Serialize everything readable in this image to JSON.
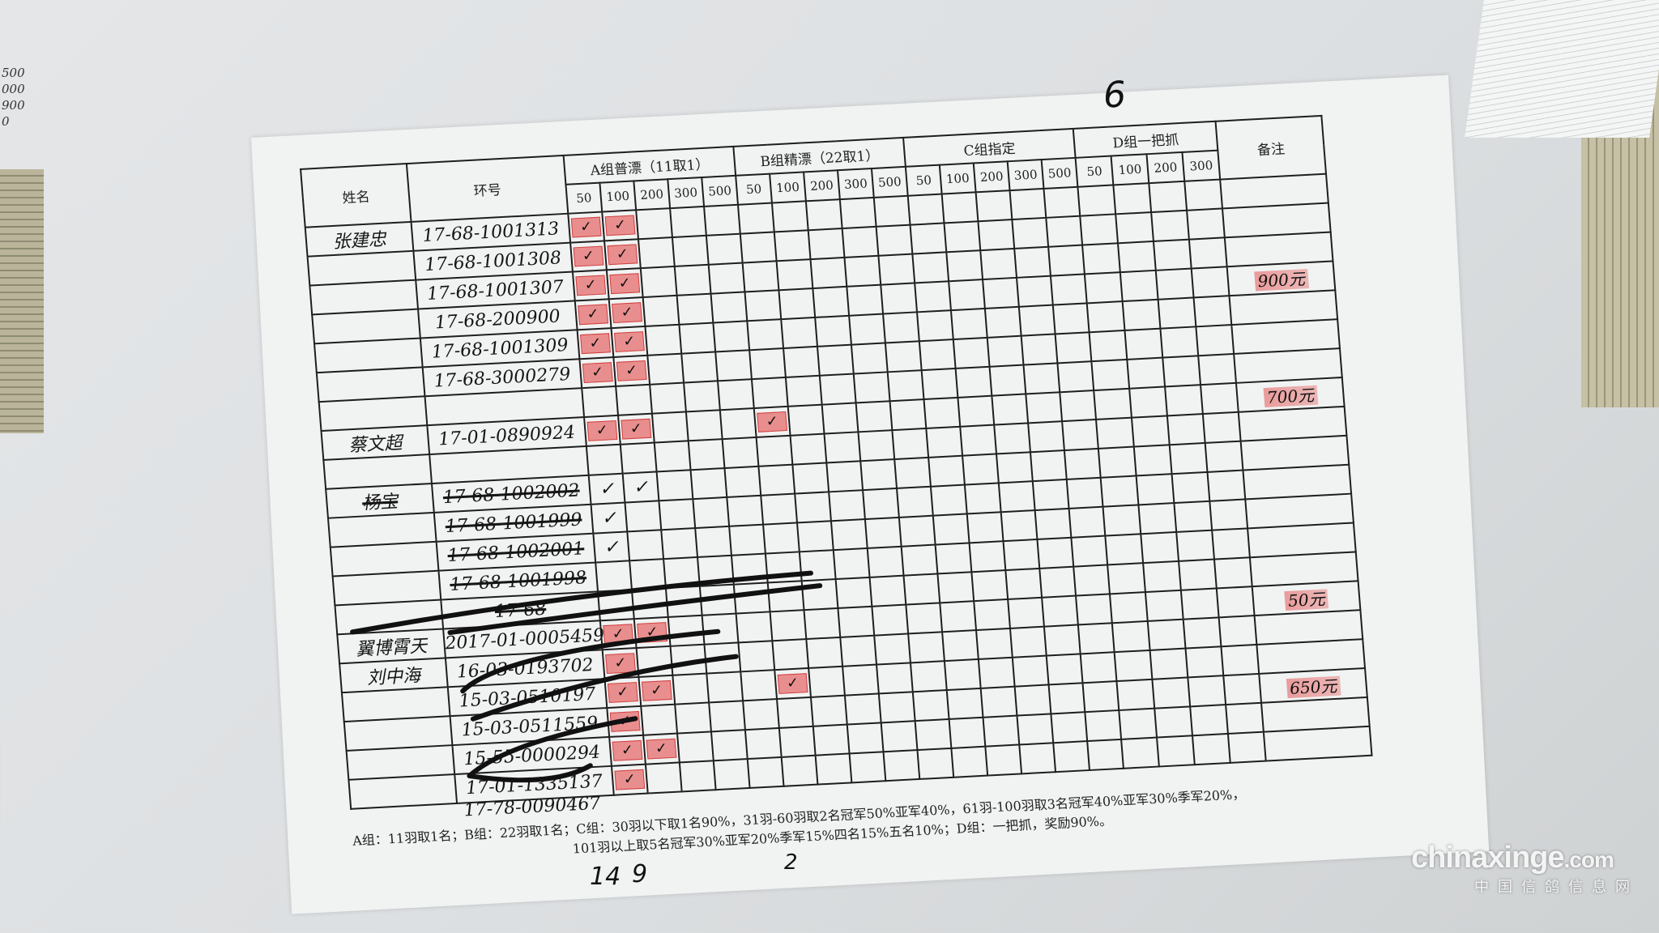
{
  "page_number": "6",
  "edge_notes": [
    "500",
    "000",
    "900",
    "0"
  ],
  "header": {
    "name": "姓名",
    "ring": "环号",
    "groups": [
      {
        "label": "A组普漂（11取1）",
        "cols": [
          "50",
          "100",
          "200",
          "300",
          "500"
        ]
      },
      {
        "label": "B组精漂（22取1）",
        "cols": [
          "50",
          "100",
          "200",
          "300",
          "500"
        ]
      },
      {
        "label": "C组指定",
        "cols": [
          "50",
          "100",
          "200",
          "300",
          "500"
        ]
      },
      {
        "label": "D组一把抓",
        "cols": [
          "50",
          "100",
          "200",
          "300"
        ]
      }
    ],
    "remarks": "备注"
  },
  "rows": [
    {
      "name": "张建忠",
      "ring": "17-68-1001313",
      "stamps": [
        0,
        1
      ],
      "note": ""
    },
    {
      "name": "",
      "ring": "17-68-1001308",
      "stamps": [
        0,
        1
      ],
      "note": ""
    },
    {
      "name": "",
      "ring": "17-68-1001307",
      "stamps": [
        0,
        1
      ],
      "note": ""
    },
    {
      "name": "",
      "ring": "17-68-200900",
      "stamps": [
        0,
        1
      ],
      "note": "900元"
    },
    {
      "name": "",
      "ring": "17-68-1001309",
      "stamps": [
        0,
        1
      ],
      "note": ""
    },
    {
      "name": "",
      "ring": "17-68-3000279",
      "stamps": [
        0,
        1
      ],
      "note": ""
    },
    {
      "name": "",
      "ring": "",
      "stamps": [],
      "note": ""
    },
    {
      "name": "蔡文超",
      "ring": "17-01-0890924",
      "stamps": [
        0,
        1,
        5
      ],
      "note": "700元"
    },
    {
      "name": "",
      "ring": "",
      "stamps": [],
      "note": ""
    },
    {
      "name": "杨宝",
      "ring": "17-68-1002002",
      "stamps": [],
      "checks": [
        0,
        1
      ],
      "struck": true,
      "note": ""
    },
    {
      "name": "",
      "ring": "17-68-1001999",
      "stamps": [],
      "checks": [
        0
      ],
      "struck": true,
      "note": ""
    },
    {
      "name": "",
      "ring": "17-68-1002001",
      "stamps": [],
      "checks": [
        0
      ],
      "struck": true,
      "note": ""
    },
    {
      "name": "",
      "ring": "17-68-1001998",
      "stamps": [],
      "struck": true,
      "note": ""
    },
    {
      "name": "",
      "ring": "17-68",
      "stamps": [],
      "struck": true,
      "note": ""
    },
    {
      "name": "翼博霄天",
      "ring": "2017-01-0005459",
      "stamps": [
        0,
        1
      ],
      "note": "50元"
    },
    {
      "name": "刘中海",
      "ring": "16-03-0193702",
      "stamps": [
        0
      ],
      "note": ""
    },
    {
      "name": "",
      "ring": "15-03-0510197",
      "stamps": [
        0,
        1,
        5
      ],
      "note": ""
    },
    {
      "name": "",
      "ring": "15-03-0511559",
      "stamps": [
        0
      ],
      "note": "650元"
    },
    {
      "name": "",
      "ring": "15-55-0000294",
      "stamps": [
        0,
        1
      ],
      "note": ""
    },
    {
      "name": "",
      "ring": "17-01-1335137",
      "stamps": [
        0
      ],
      "note": ""
    }
  ],
  "extra_ring": "17-78-0090467",
  "footer": {
    "line1": "A组：11羽取1名；B组：22羽取1名；C组：30羽以下取1名90%，31羽-60羽取2名冠军50%亚军40%，61羽-100羽取3名冠军40%亚军30%季军20%，",
    "line1b": "D组：一把抓，奖励90%。",
    "line2": "101羽以上取5名冠军30%亚军20%季军15%四名15%五名10%；"
  },
  "tallies": [
    "14",
    "9",
    "2"
  ],
  "watermark": {
    "domain": "chinaxinge",
    "tld": ".com",
    "subtitle": "中国信鸽信息网"
  },
  "colors": {
    "stamp_red": "#e13c3c",
    "ink": "#151515",
    "paper": "#f1f2f2"
  }
}
